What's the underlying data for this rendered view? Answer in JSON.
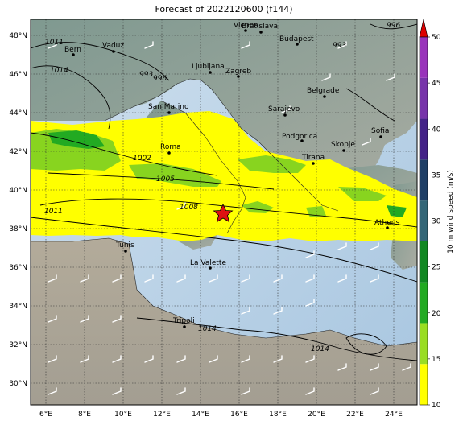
{
  "title": "Forecast of 2022120600 (f144)",
  "x_ticks": [
    "6°E",
    "8°E",
    "10°E",
    "12°E",
    "14°E",
    "16°E",
    "18°E",
    "20°E",
    "22°E",
    "24°E"
  ],
  "y_ticks": [
    "48°N",
    "46°N",
    "44°N",
    "42°N",
    "40°N",
    "38°N",
    "36°N",
    "34°N",
    "32°N",
    "30°N"
  ],
  "colorbar": {
    "label": "10 m wind speed (m/s)",
    "ticks": [
      "10",
      "15",
      "20",
      "25",
      "30",
      "35",
      "40",
      "45",
      "50"
    ],
    "colors": [
      "#ffff00",
      "#99dd22",
      "#22aa22",
      "#118822",
      "#336677",
      "#1f3f66",
      "#442288",
      "#7733aa",
      "#9933bb"
    ],
    "extend_color": "#dd0000"
  },
  "cities": [
    {
      "name": "Bern"
    },
    {
      "name": "Vaduz"
    },
    {
      "name": "Vienna"
    },
    {
      "name": "Bratislava"
    },
    {
      "name": "Budapest"
    },
    {
      "name": "Ljubljana"
    },
    {
      "name": "Zagreb"
    },
    {
      "name": "Belgrade"
    },
    {
      "name": "San Marino"
    },
    {
      "name": "Sarajevo"
    },
    {
      "name": "Podgorica"
    },
    {
      "name": "Sofia"
    },
    {
      "name": "Skopje"
    },
    {
      "name": "Tirana"
    },
    {
      "name": "Roma"
    },
    {
      "name": "Athens"
    },
    {
      "name": "Tunis"
    },
    {
      "name": "La Valette"
    },
    {
      "name": "Tripoli"
    }
  ],
  "isobar_labels": [
    "1011",
    "1014",
    "996",
    "993",
    "1002",
    "1005",
    "1008",
    "1011",
    "1014",
    "1014",
    "993",
    "996"
  ],
  "storm_center": {
    "symbol": "star",
    "color": "#dd1111"
  }
}
